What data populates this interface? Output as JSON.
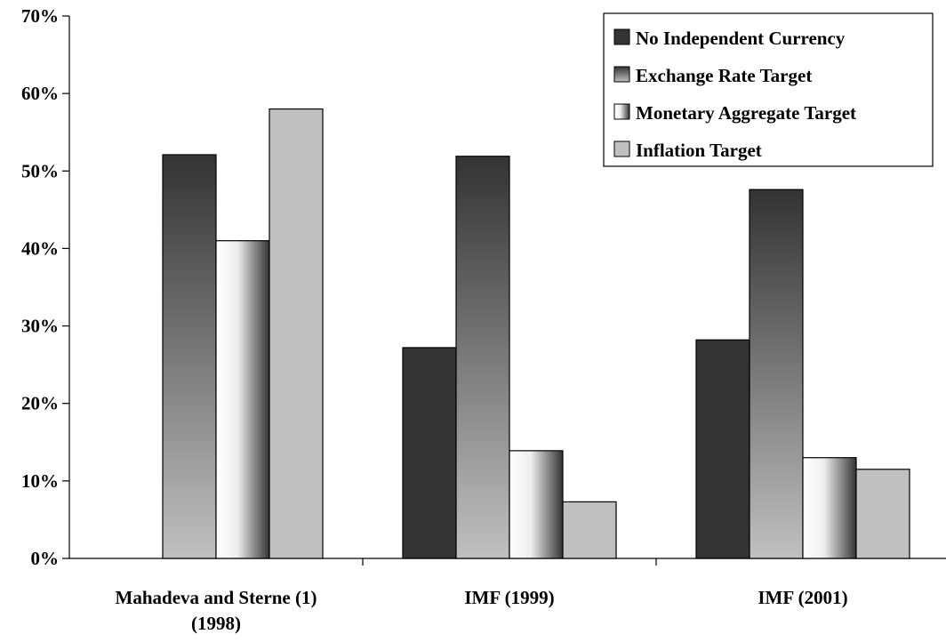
{
  "chart_data": {
    "type": "bar",
    "title": "",
    "xlabel": "",
    "ylabel": "",
    "ylim": [
      0,
      70
    ],
    "y_ticks": [
      {
        "value": 0,
        "label": "0%"
      },
      {
        "value": 10,
        "label": "10%"
      },
      {
        "value": 20,
        "label": "20%"
      },
      {
        "value": 30,
        "label": "30%"
      },
      {
        "value": 40,
        "label": "40%"
      },
      {
        "value": 50,
        "label": "50%"
      },
      {
        "value": 60,
        "label": "60%"
      },
      {
        "value": 70,
        "label": "70%"
      }
    ],
    "categories": [
      {
        "lines": [
          "Mahadeva and Sterne (1)",
          "(1998)"
        ]
      },
      {
        "lines": [
          "IMF (1999)"
        ]
      },
      {
        "lines": [
          "IMF (2001)"
        ]
      }
    ],
    "series": [
      {
        "name": "No Independent Currency",
        "values": [
          null,
          27.2,
          28.2
        ],
        "fill": "solid",
        "color": "#333333"
      },
      {
        "name": "Exchange Rate Target",
        "values": [
          52.1,
          51.9,
          47.6
        ],
        "fill": "vertical-gradient",
        "color_top": "#333333",
        "color_bottom": "#c0c0c0"
      },
      {
        "name": "Monetary Aggregate Target",
        "values": [
          41.0,
          13.9,
          13.0
        ],
        "fill": "horizontal-gradient",
        "color_left": "#ffffff",
        "color_right": "#333333"
      },
      {
        "name": "Inflation Target",
        "values": [
          58.0,
          7.3,
          11.5
        ],
        "fill": "solid",
        "color": "#c0c0c0"
      }
    ],
    "legend_position": "top-right",
    "grid": false
  }
}
